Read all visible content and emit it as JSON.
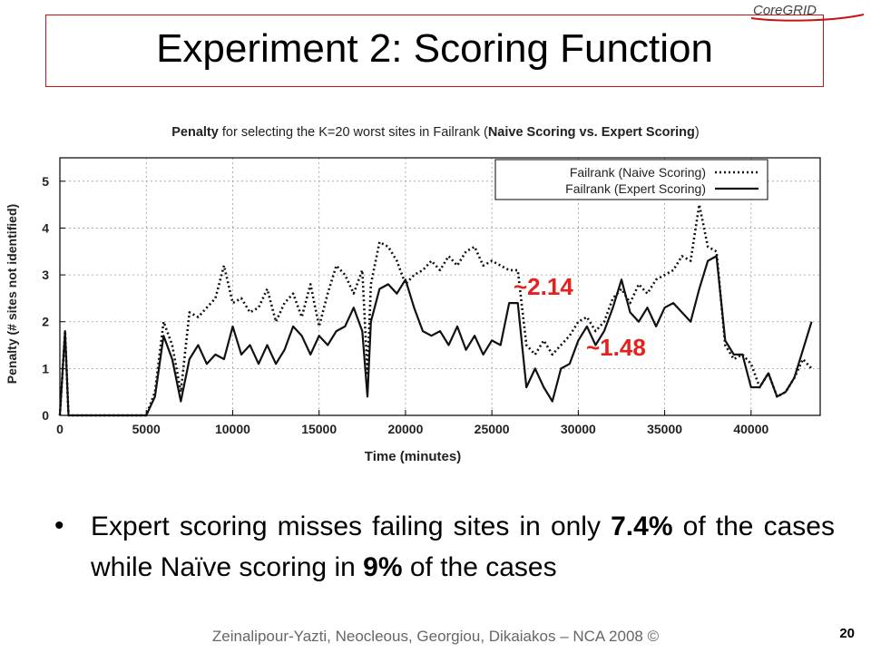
{
  "slide": {
    "title": "Experiment 2: Scoring Function",
    "logo_text": "CoreGRID",
    "bullet": {
      "p1": "Expert scoring misses failing sites in only ",
      "b1": "7.4%",
      "p2": " of the cases while Naïve scoring in ",
      "b2": "9%",
      "p3": " of the cases"
    },
    "footer": "Zeinalipour-Yazti, Neocleous, Georgiou, Dikaiakos – NCA 2008 ©",
    "page_number": "20"
  },
  "chart_data": {
    "type": "line",
    "title_parts": [
      {
        "text": "Penalty",
        "bold": true
      },
      {
        "text": " for selecting the K=20 worst sites in Failrank (",
        "bold": false
      },
      {
        "text": "Naive Scoring vs. Expert Scoring",
        "bold": true
      },
      {
        "text": ")",
        "bold": false
      }
    ],
    "xlabel": "Time (minutes)",
    "ylabel": "Penalty (# sites not identified)",
    "xlim": [
      0,
      44000
    ],
    "ylim": [
      0,
      5.5
    ],
    "xticks": [
      0,
      5000,
      10000,
      15000,
      20000,
      25000,
      30000,
      35000,
      40000
    ],
    "yticks": [
      0,
      1,
      2,
      3,
      4,
      5
    ],
    "grid": true,
    "legend_position": "top-right",
    "annotations": [
      {
        "text": "~2.14",
        "color": "#e8201c"
      },
      {
        "text": "~1.48",
        "color": "#e8201c"
      }
    ],
    "series": [
      {
        "name": "Failrank (Naive Scoring)",
        "style": "dotted",
        "x": [
          0,
          300,
          500,
          800,
          1000,
          1500,
          2000,
          2500,
          3000,
          3500,
          4000,
          4500,
          5000,
          5500,
          6000,
          6500,
          7000,
          7500,
          8000,
          8500,
          9000,
          9500,
          10000,
          10500,
          11000,
          11500,
          12000,
          12500,
          13000,
          13500,
          14000,
          14500,
          15000,
          15500,
          16000,
          16500,
          17000,
          17500,
          17800,
          18000,
          18500,
          19000,
          19500,
          20000,
          20500,
          21000,
          21500,
          22000,
          22500,
          23000,
          23500,
          24000,
          24500,
          25000,
          25500,
          26000,
          26500,
          27000,
          27500,
          28000,
          28500,
          29000,
          29500,
          30000,
          30500,
          31000,
          31500,
          32000,
          32500,
          33000,
          33500,
          34000,
          34500,
          35000,
          35500,
          36000,
          36500,
          37000,
          37500,
          38000,
          38500,
          39000,
          39500,
          40000,
          40500,
          41000,
          41500,
          42000,
          42500,
          43000,
          43500
        ],
        "y": [
          0,
          1.8,
          0,
          0,
          0,
          0,
          0,
          0,
          0,
          0,
          0,
          0,
          0,
          0.5,
          2.0,
          1.5,
          0.5,
          2.2,
          2.1,
          2.3,
          2.5,
          3.2,
          2.4,
          2.5,
          2.2,
          2.3,
          2.7,
          2.0,
          2.4,
          2.6,
          2.1,
          2.8,
          1.9,
          2.6,
          3.2,
          3.0,
          2.6,
          3.1,
          0.9,
          2.8,
          3.7,
          3.6,
          3.3,
          2.8,
          3.0,
          3.1,
          3.3,
          3.1,
          3.4,
          3.2,
          3.5,
          3.6,
          3.2,
          3.3,
          3.2,
          3.1,
          3.1,
          1.5,
          1.3,
          1.6,
          1.3,
          1.5,
          1.7,
          2.0,
          2.1,
          1.8,
          2.0,
          2.5,
          2.7,
          2.4,
          2.8,
          2.6,
          2.9,
          3.0,
          3.1,
          3.4,
          3.3,
          4.5,
          3.6,
          3.5,
          1.5,
          1.2,
          1.3,
          1.1,
          0.6,
          0.9,
          0.4,
          0.5,
          0.8,
          1.2,
          1.0
        ]
      },
      {
        "name": "Failrank (Expert Scoring)",
        "style": "solid",
        "x": [
          0,
          300,
          500,
          800,
          1000,
          1500,
          2000,
          2500,
          3000,
          3500,
          4000,
          4500,
          5000,
          5500,
          6000,
          6500,
          7000,
          7500,
          8000,
          8500,
          9000,
          9500,
          10000,
          10500,
          11000,
          11500,
          12000,
          12500,
          13000,
          13500,
          14000,
          14500,
          15000,
          15500,
          16000,
          16500,
          17000,
          17500,
          17800,
          18000,
          18500,
          19000,
          19500,
          20000,
          20500,
          21000,
          21500,
          22000,
          22500,
          23000,
          23500,
          24000,
          24500,
          25000,
          25500,
          26000,
          26500,
          27000,
          27500,
          28000,
          28500,
          29000,
          29500,
          30000,
          30500,
          31000,
          31500,
          32000,
          32500,
          33000,
          33500,
          34000,
          34500,
          35000,
          35500,
          36000,
          36500,
          37000,
          37500,
          38000,
          38500,
          39000,
          39500,
          40000,
          40500,
          41000,
          41500,
          42000,
          42500,
          43000,
          43500
        ],
        "y": [
          0,
          1.8,
          0,
          0,
          0,
          0,
          0,
          0,
          0,
          0,
          0,
          0,
          0,
          0.4,
          1.7,
          1.2,
          0.3,
          1.2,
          1.5,
          1.1,
          1.3,
          1.2,
          1.9,
          1.3,
          1.5,
          1.1,
          1.5,
          1.1,
          1.4,
          1.9,
          1.7,
          1.3,
          1.7,
          1.5,
          1.8,
          1.9,
          2.3,
          1.8,
          0.4,
          2.0,
          2.7,
          2.8,
          2.6,
          2.9,
          2.3,
          1.8,
          1.7,
          1.8,
          1.5,
          1.9,
          1.4,
          1.7,
          1.3,
          1.6,
          1.5,
          2.4,
          2.4,
          0.6,
          1.0,
          0.6,
          0.3,
          1.0,
          1.1,
          1.6,
          1.9,
          1.5,
          1.8,
          2.3,
          2.9,
          2.2,
          2.0,
          2.3,
          1.9,
          2.3,
          2.4,
          2.2,
          2.0,
          2.7,
          3.3,
          3.4,
          1.6,
          1.3,
          1.3,
          0.6,
          0.6,
          0.9,
          0.4,
          0.5,
          0.8,
          1.4,
          2.0
        ]
      }
    ]
  }
}
